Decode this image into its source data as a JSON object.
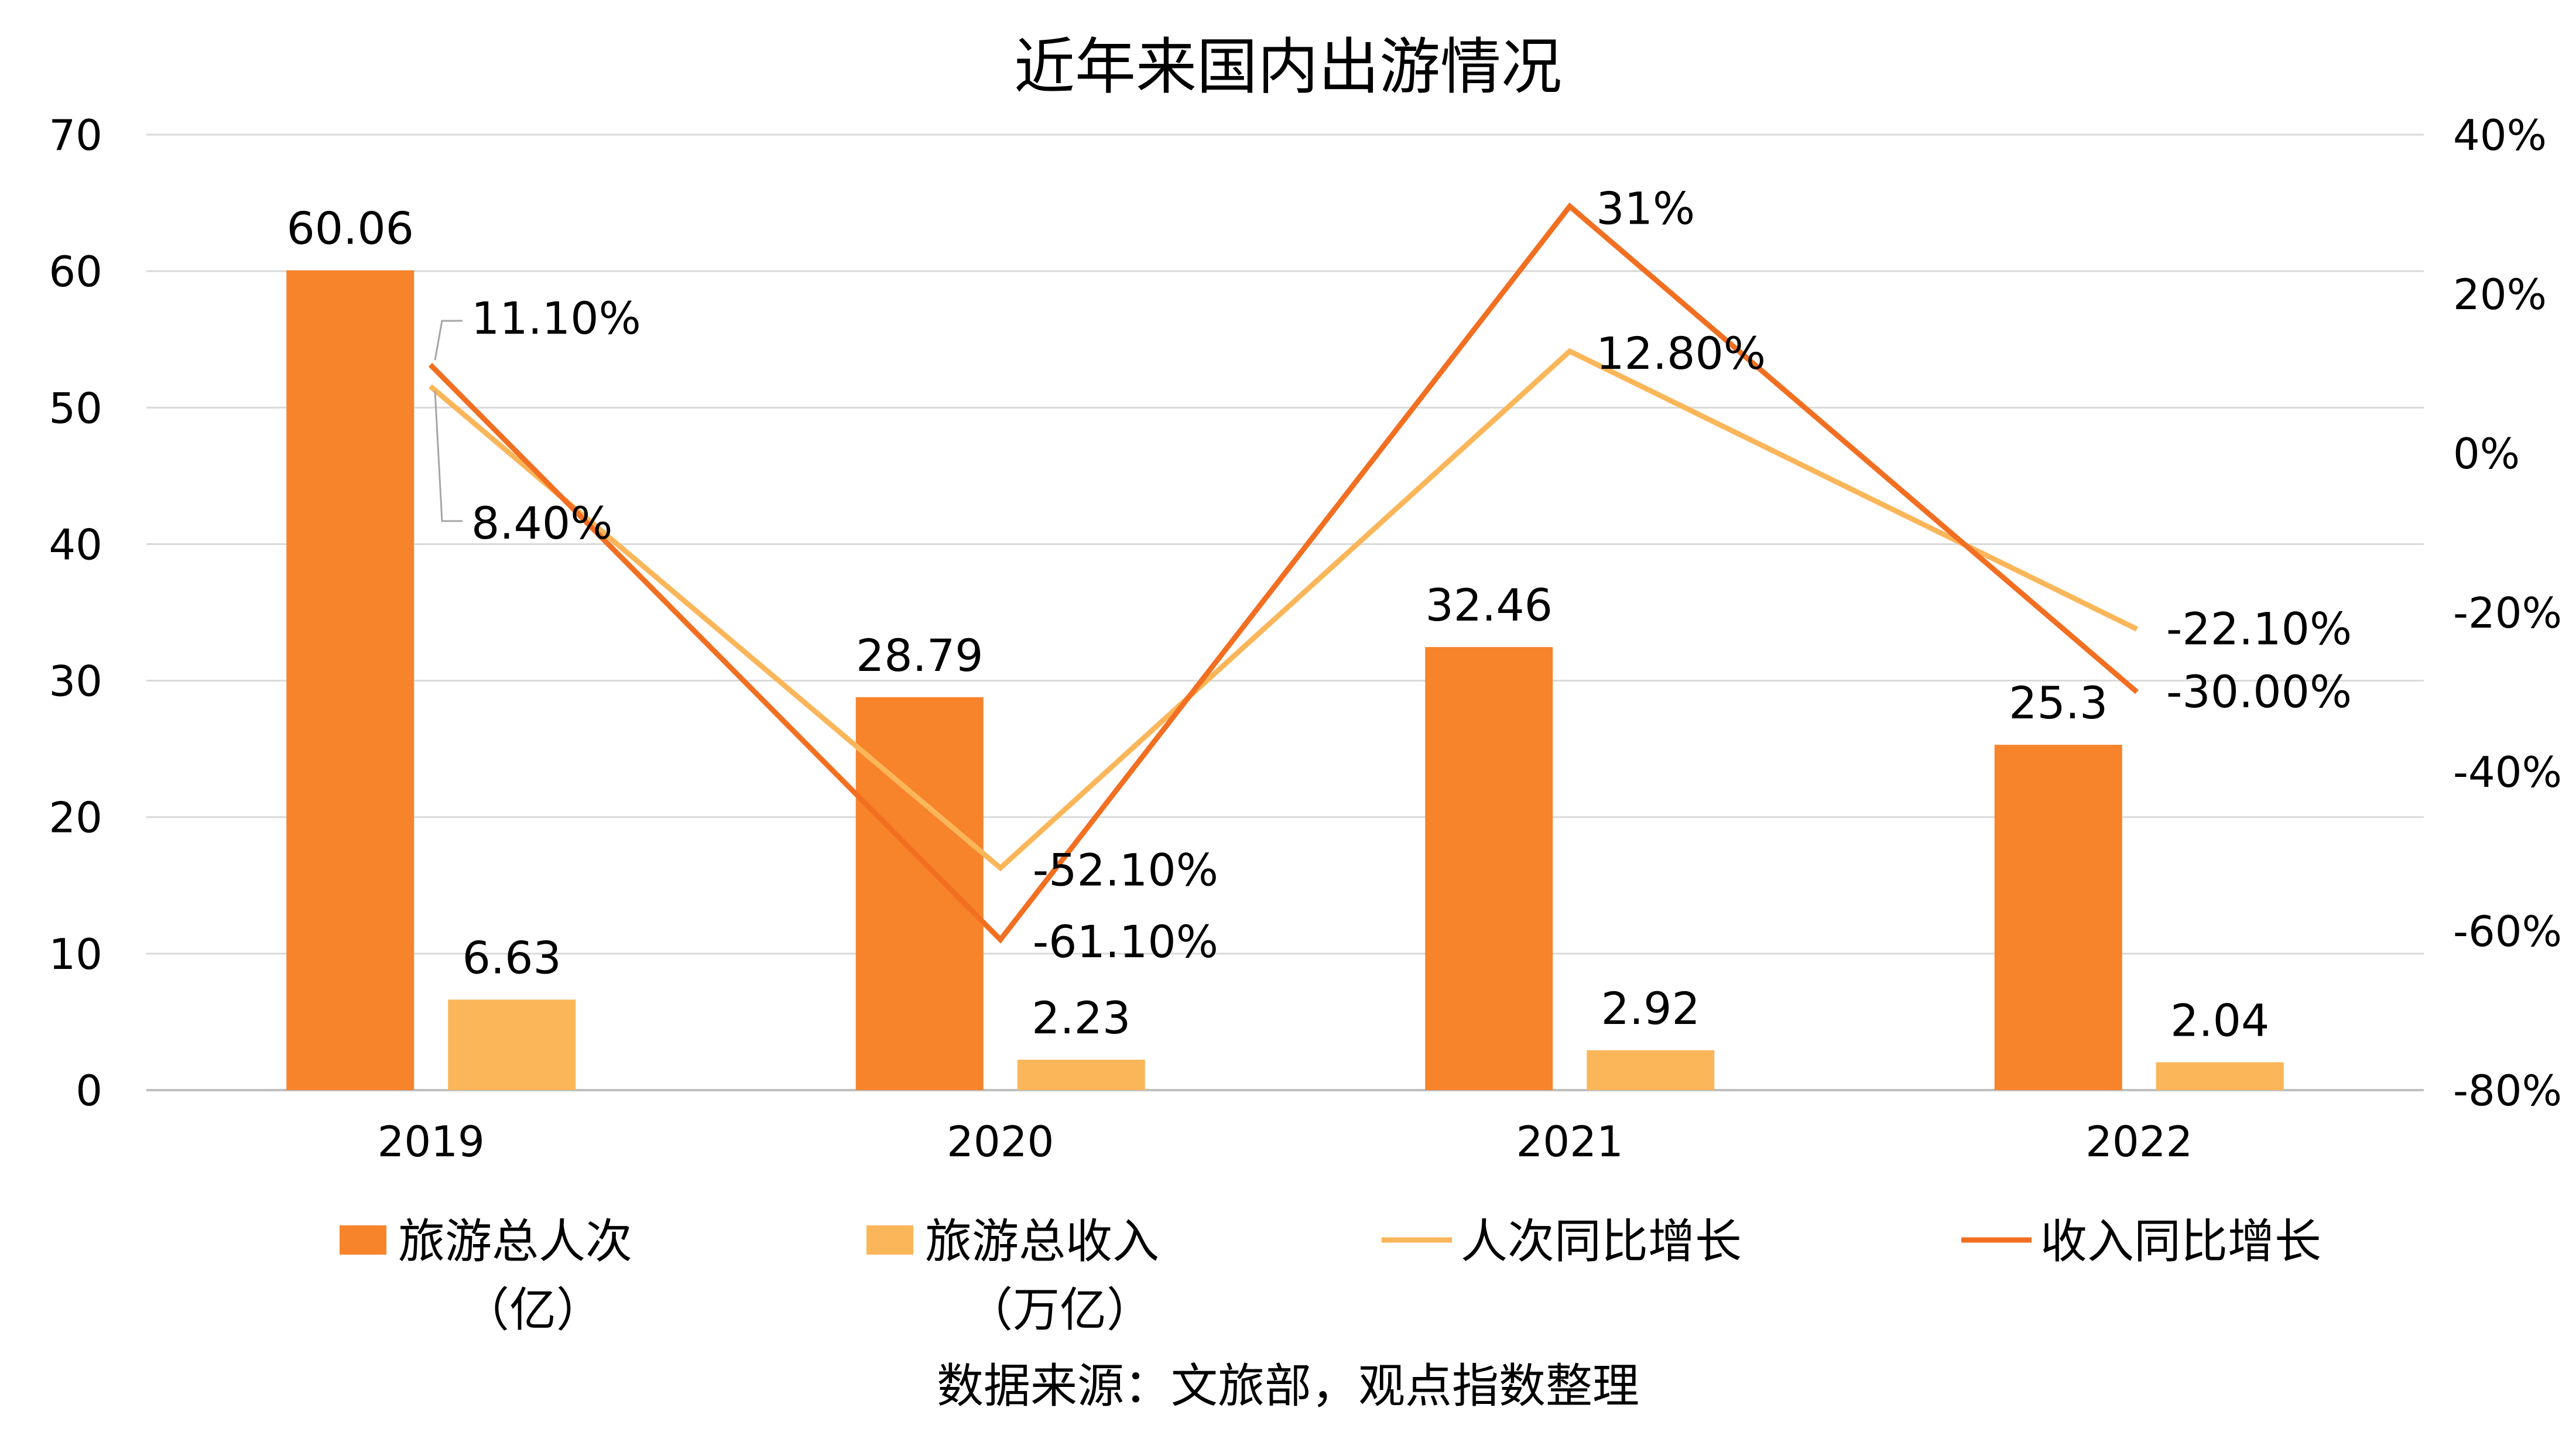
{
  "chart_data": {
    "type": "bar",
    "title": "近年来国内出游情况",
    "categories": [
      "2019",
      "2020",
      "2021",
      "2022"
    ],
    "ylim": [
      0,
      70
    ],
    "y_ticks": [
      "0",
      "10",
      "20",
      "30",
      "40",
      "50",
      "60",
      "70"
    ],
    "y2lim": [
      -80,
      40
    ],
    "y2_ticks": [
      "-80%",
      "-60%",
      "-40%",
      "-20%",
      "0%",
      "20%",
      "40%"
    ],
    "grid": true,
    "legend_position": "bottom",
    "series": [
      {
        "name": "旅游总人次（亿）",
        "kind": "bar",
        "axis": "left",
        "color": "#F7832A",
        "values": [
          60.06,
          28.79,
          32.46,
          25.3
        ],
        "labels": [
          "60.06",
          "28.79",
          "32.46",
          "25.3"
        ]
      },
      {
        "name": "旅游总收入（万亿）",
        "kind": "bar",
        "axis": "left",
        "color": "#FBB65A",
        "values": [
          6.63,
          2.23,
          2.92,
          2.04
        ],
        "labels": [
          "6.63",
          "2.23",
          "2.92",
          "2.04"
        ]
      },
      {
        "name": "人次同比增长",
        "kind": "line",
        "axis": "right",
        "color": "#FBB65A",
        "values": [
          8.4,
          -52.1,
          12.8,
          -22.1
        ],
        "labels": [
          "8.40%",
          "-52.10%",
          "12.80%",
          "-22.10%"
        ]
      },
      {
        "name": "收入同比增长",
        "kind": "line",
        "axis": "right",
        "color": "#F26F21",
        "values": [
          11.1,
          -61.1,
          31,
          -30.0
        ],
        "labels": [
          "11.10%",
          "-61.10%",
          "31%",
          "-30.00%"
        ]
      }
    ],
    "legend": [
      {
        "line1": "旅游总人次",
        "line2": "（亿）",
        "type": "bar",
        "color": "#F7832A"
      },
      {
        "line1": "旅游总收入",
        "line2": "（万亿）",
        "type": "bar",
        "color": "#FBB65A"
      },
      {
        "line1": "人次同比增长",
        "line2": "",
        "type": "line",
        "color": "#FBB65A"
      },
      {
        "line1": "收入同比增长",
        "line2": "",
        "type": "line",
        "color": "#F26F21"
      }
    ],
    "source": "数据来源：文旅部，观点指数整理"
  }
}
